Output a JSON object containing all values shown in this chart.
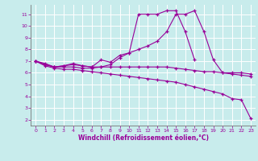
{
  "xlabel": "Windchill (Refroidissement éolien,°C)",
  "bg_color": "#c8ecec",
  "line_color": "#990099",
  "grid_color": "#ffffff",
  "xlim": [
    -0.5,
    23.5
  ],
  "ylim": [
    1.5,
    11.8
  ],
  "yticks": [
    2,
    3,
    4,
    5,
    6,
    7,
    8,
    9,
    10,
    11
  ],
  "xticks": [
    0,
    1,
    2,
    3,
    4,
    5,
    6,
    7,
    8,
    9,
    10,
    11,
    12,
    13,
    14,
    15,
    16,
    17,
    18,
    19,
    20,
    21,
    22,
    23
  ],
  "series": [
    {
      "x": [
        0,
        1,
        2,
        3,
        4,
        5,
        6,
        7,
        8,
        9,
        10,
        11,
        12,
        13,
        14,
        15,
        16,
        17
      ],
      "y": [
        7.0,
        6.8,
        6.5,
        6.6,
        6.8,
        6.6,
        6.5,
        7.1,
        6.9,
        7.5,
        7.7,
        11.0,
        11.0,
        11.0,
        11.3,
        11.3,
        9.5,
        7.1
      ]
    },
    {
      "x": [
        0,
        1,
        2,
        3,
        4,
        5,
        6,
        7,
        8,
        9,
        10,
        11,
        12,
        13,
        14,
        15,
        16,
        17,
        18,
        19,
        20,
        21,
        22,
        23
      ],
      "y": [
        7.0,
        6.7,
        6.5,
        6.5,
        6.5,
        6.4,
        6.4,
        6.5,
        6.7,
        7.3,
        7.7,
        8.0,
        8.3,
        8.7,
        9.5,
        11.0,
        11.0,
        11.3,
        9.5,
        7.1,
        6.0,
        6.0,
        6.0,
        5.9
      ]
    },
    {
      "x": [
        0,
        1,
        2,
        3,
        4,
        5,
        6,
        7,
        8,
        9,
        10,
        11,
        12,
        13,
        14,
        15,
        16,
        17,
        18,
        19,
        20,
        21,
        22,
        23
      ],
      "y": [
        7.0,
        6.7,
        6.5,
        6.6,
        6.7,
        6.6,
        6.5,
        6.5,
        6.5,
        6.5,
        6.5,
        6.5,
        6.5,
        6.5,
        6.5,
        6.4,
        6.3,
        6.2,
        6.1,
        6.1,
        6.0,
        5.9,
        5.8,
        5.7
      ]
    },
    {
      "x": [
        0,
        1,
        2,
        3,
        4,
        5,
        6,
        7,
        8,
        9,
        10,
        11,
        12,
        13,
        14,
        15,
        16,
        17,
        18,
        19,
        20,
        21,
        22,
        23
      ],
      "y": [
        7.0,
        6.6,
        6.4,
        6.3,
        6.3,
        6.2,
        6.1,
        6.0,
        5.9,
        5.8,
        5.7,
        5.6,
        5.5,
        5.4,
        5.3,
        5.2,
        5.0,
        4.8,
        4.6,
        4.4,
        4.2,
        3.8,
        3.7,
        2.1
      ]
    }
  ]
}
